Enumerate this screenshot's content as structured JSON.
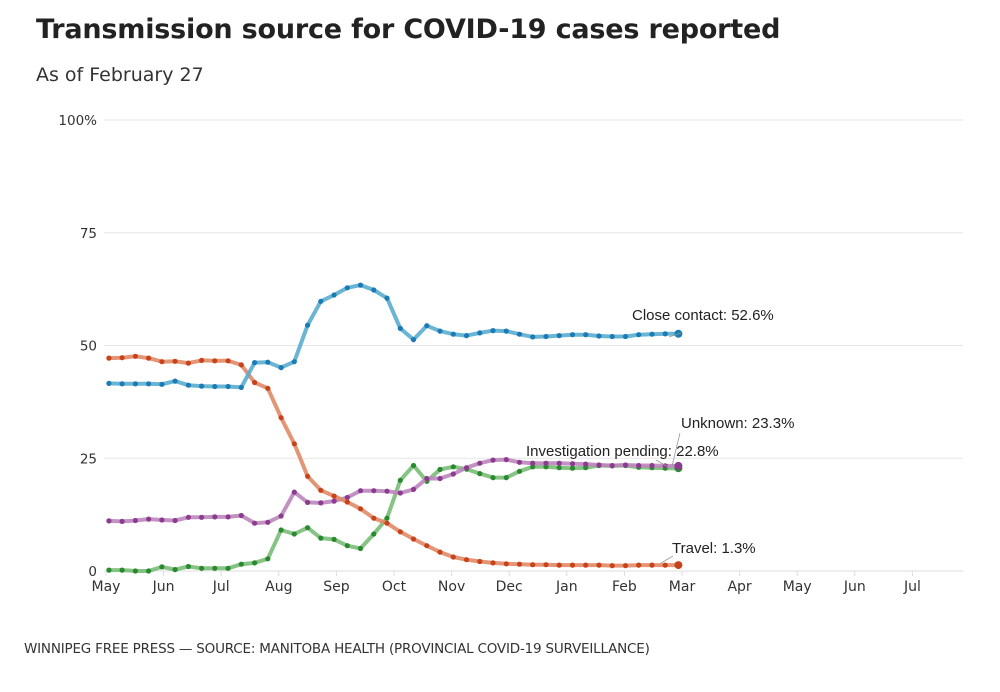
{
  "header": {
    "title": "Transmission source for COVID-19 cases reported",
    "subtitle": "As of February 27"
  },
  "footer": {
    "credit": "WINNIPEG FREE PRESS — SOURCE: MANITOBA HEALTH (PROVINCIAL COVID-19 SURVEILLANCE)"
  },
  "chart_data": {
    "type": "line",
    "title": "Transmission source for COVID-19 cases reported",
    "subtitle": "As of February 27",
    "xlabel": "",
    "ylabel": "",
    "ylim": [
      0,
      100
    ],
    "y_ticks": [
      {
        "value": 0,
        "label": "0"
      },
      {
        "value": 25,
        "label": "25"
      },
      {
        "value": 50,
        "label": "50"
      },
      {
        "value": 75,
        "label": "75"
      },
      {
        "value": 100,
        "label": "100%"
      }
    ],
    "x_ticks": [
      "May",
      "Jun",
      "Jul",
      "Aug",
      "Sep",
      "Oct",
      "Nov",
      "Dec",
      "Jan",
      "Feb",
      "Mar",
      "Apr",
      "May",
      "Jun",
      "Jul"
    ],
    "x_range_months": [
      0,
      14.9
    ],
    "x_start_month_offset": 0.05,
    "x_step_weeks": 1,
    "grid": true,
    "legend": "direct-labels-right",
    "series": [
      {
        "name": "Close contact",
        "label": "Close contact: 52.6%",
        "color": "#1a7bb5",
        "line_color": "#5aaccf",
        "values": [
          41.6,
          41.5,
          41.5,
          41.5,
          41.4,
          42.1,
          41.2,
          41.0,
          40.9,
          40.9,
          40.7,
          46.2,
          46.3,
          45.1,
          46.4,
          54.5,
          59.8,
          61.2,
          62.8,
          63.4,
          62.3,
          60.5,
          53.8,
          51.3,
          54.4,
          53.2,
          52.5,
          52.2,
          52.8,
          53.3,
          53.2,
          52.5,
          51.9,
          52.0,
          52.2,
          52.4,
          52.4,
          52.1,
          52.0,
          52.0,
          52.4,
          52.5,
          52.6,
          52.6
        ]
      },
      {
        "name": "Travel",
        "label": "Travel: 1.3%",
        "color": "#c8431a",
        "line_color": "#e08a66",
        "values": [
          47.2,
          47.3,
          47.6,
          47.2,
          46.4,
          46.5,
          46.1,
          46.7,
          46.6,
          46.6,
          45.7,
          41.8,
          40.5,
          34.0,
          28.2,
          21.0,
          17.9,
          16.6,
          15.3,
          13.8,
          11.7,
          10.6,
          8.7,
          7.1,
          5.6,
          4.2,
          3.1,
          2.5,
          2.1,
          1.8,
          1.6,
          1.5,
          1.4,
          1.4,
          1.3,
          1.3,
          1.3,
          1.3,
          1.2,
          1.2,
          1.3,
          1.3,
          1.3,
          1.3
        ]
      },
      {
        "name": "Unknown",
        "label": "Unknown: 23.3%",
        "color": "#8b3c8f",
        "line_color": "#bb86bd",
        "values": [
          11.1,
          11.0,
          11.2,
          11.5,
          11.3,
          11.2,
          11.9,
          11.9,
          12.0,
          12.0,
          12.3,
          10.6,
          10.8,
          12.2,
          17.5,
          15.2,
          15.1,
          15.5,
          16.3,
          17.8,
          17.8,
          17.7,
          17.3,
          18.1,
          20.5,
          20.5,
          21.5,
          22.9,
          23.9,
          24.6,
          24.7,
          24.1,
          23.9,
          23.9,
          23.9,
          23.8,
          23.7,
          23.5,
          23.4,
          23.5,
          23.4,
          23.4,
          23.3,
          23.3
        ]
      },
      {
        "name": "Investigation pending",
        "label": "Investigation pending: 22.8%",
        "color": "#2a8a2e",
        "line_color": "#79bc78",
        "values": [
          0.2,
          0.2,
          0.0,
          0.0,
          0.9,
          0.3,
          1.0,
          0.6,
          0.6,
          0.6,
          1.5,
          1.8,
          2.7,
          9.1,
          8.2,
          9.6,
          7.3,
          7.0,
          5.6,
          5.0,
          8.2,
          11.7,
          20.1,
          23.4,
          19.9,
          22.5,
          23.1,
          22.6,
          21.6,
          20.7,
          20.7,
          22.1,
          23.1,
          23.1,
          22.9,
          22.8,
          22.9,
          23.4,
          23.3,
          23.4,
          23.0,
          22.9,
          22.8,
          22.8
        ]
      }
    ]
  }
}
